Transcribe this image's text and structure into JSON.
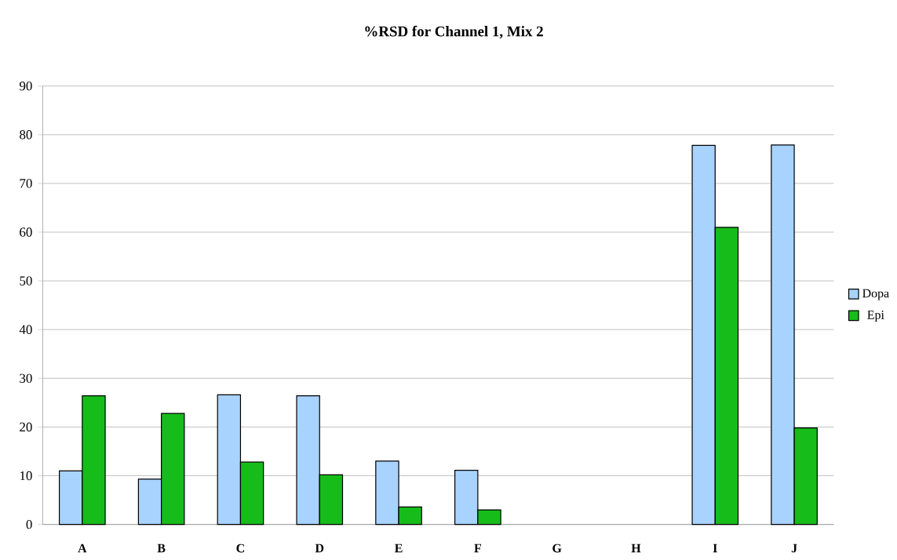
{
  "chart_data": {
    "type": "bar",
    "title": "%RSD for Channel 1, Mix 2",
    "categories": [
      "A",
      "B",
      "C",
      "D",
      "E",
      "F",
      "G",
      "H",
      "I",
      "J"
    ],
    "series": [
      {
        "name": "Dopa",
        "color": "#a8d3ff",
        "values": [
          11.0,
          9.3,
          26.6,
          26.4,
          13.0,
          11.1,
          null,
          null,
          77.8,
          77.9
        ]
      },
      {
        "name": "Epi",
        "color": "#16bd1a",
        "values": [
          26.4,
          22.8,
          12.8,
          10.2,
          3.6,
          3.0,
          null,
          null,
          61.0,
          19.8
        ]
      }
    ],
    "ylim": [
      0,
      90
    ],
    "yticks": [
      0,
      10,
      20,
      30,
      40,
      50,
      60,
      70,
      80,
      90
    ],
    "grid": "y",
    "legend": "right"
  }
}
